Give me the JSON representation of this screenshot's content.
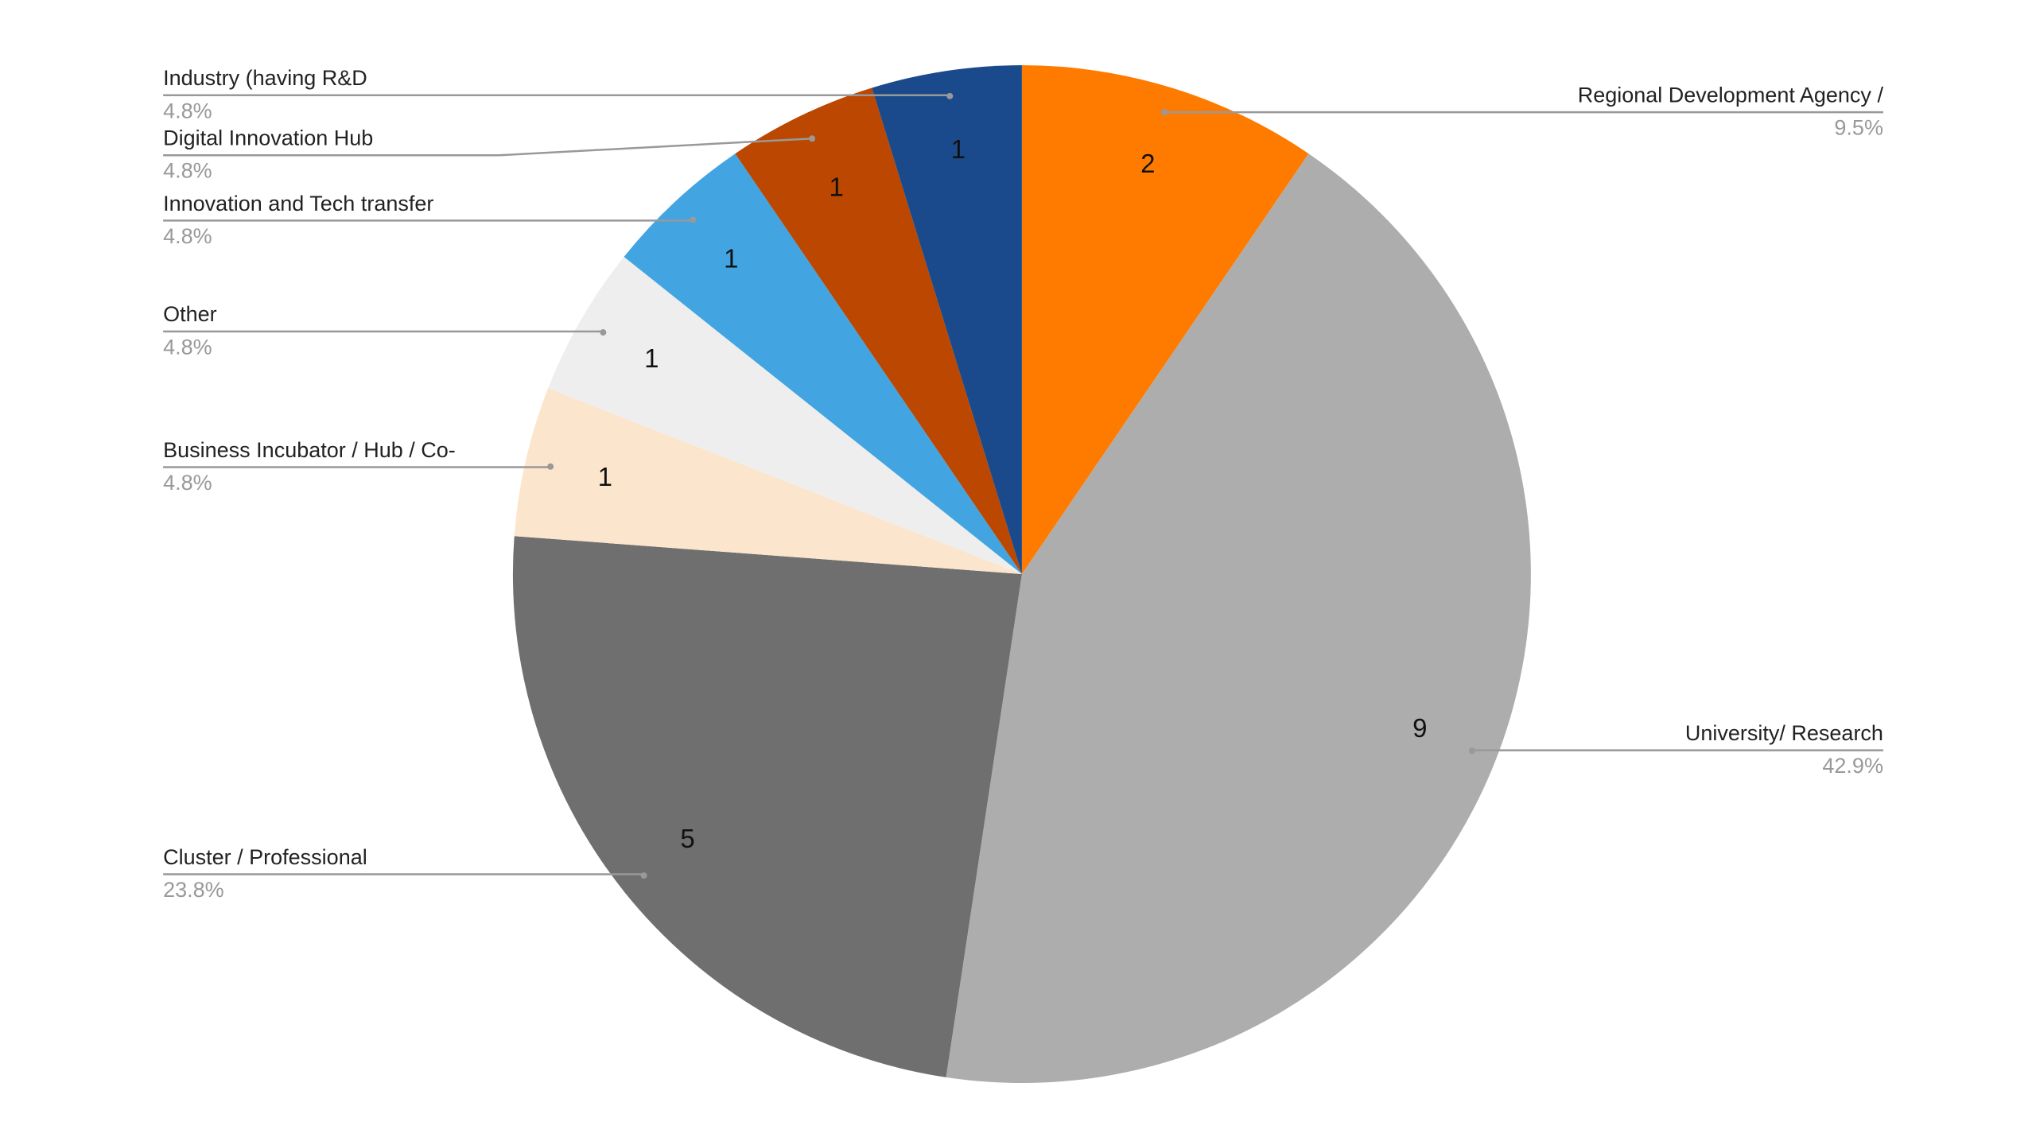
{
  "chart_data": {
    "type": "pie",
    "categories": [
      "Regional Development Agency /",
      "University/ Research",
      "Cluster / Professional",
      "Business Incubator / Hub / Co-",
      "Other",
      "Innovation and Tech transfer",
      "Digital Innovation Hub",
      "Industry (having R&D"
    ],
    "values": [
      2,
      9,
      5,
      1,
      1,
      1,
      1,
      1
    ],
    "percentages": [
      {
        "value": 9.5,
        "label": "9.5%"
      },
      {
        "value": 42.9,
        "label": "42.9%"
      },
      {
        "value": 23.8,
        "label": "23.8%"
      },
      {
        "value": 4.8,
        "label": "4.8%"
      },
      {
        "value": 4.8,
        "label": "4.8%"
      },
      {
        "value": 4.8,
        "label": "4.8%"
      },
      {
        "value": 4.8,
        "label": "4.8%"
      },
      {
        "value": 4.8,
        "label": "4.8%"
      }
    ],
    "colors": [
      "#ff7b00",
      "#adadad",
      "#6f6f6f",
      "#fce5cd",
      "#eeeeee",
      "#42a5e2",
      "#bb4700",
      "#1a4a8b"
    ]
  }
}
